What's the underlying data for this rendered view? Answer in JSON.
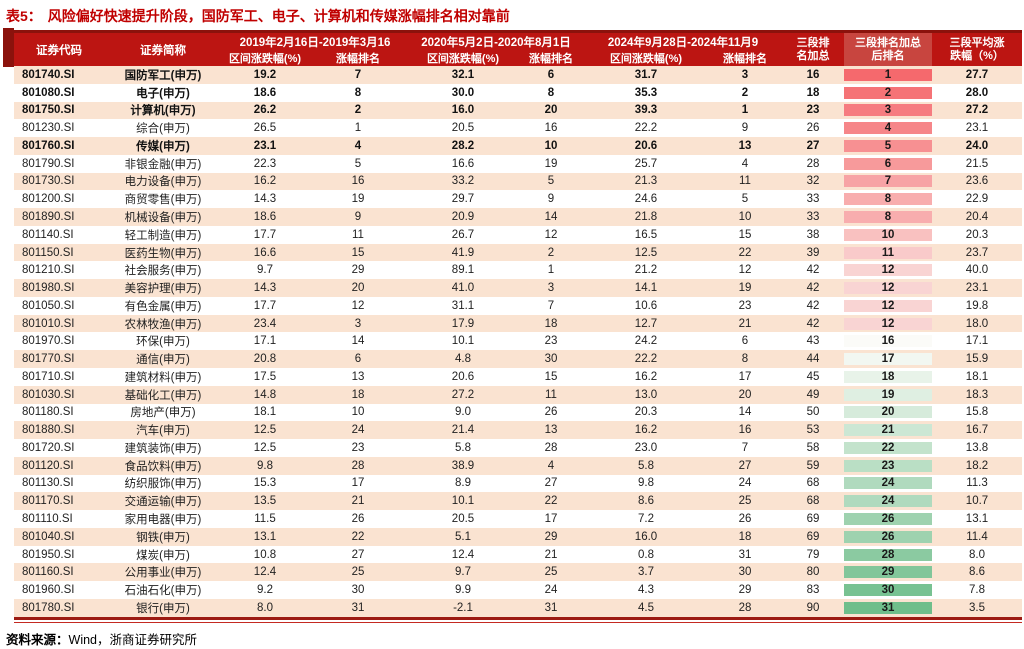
{
  "title": {
    "tag": "表5：",
    "text": "风险偏好快速提升阶段，国防军工、电子、计算机和传媒涨幅排名相对靠前"
  },
  "header": {
    "code": "证券代码",
    "name": "证券简称",
    "periods": [
      {
        "range": "2019年2月16日-2019年3月16",
        "pct": "区间涨跌幅(%)",
        "rank": "涨幅排名"
      },
      {
        "range": "2020年5月2日-2020年8月1日",
        "pct": "区间涨跌幅(%)",
        "rank": "涨幅排名"
      },
      {
        "range": "2024年9月28日-2024年11月9",
        "pct": "区间涨跌幅(%)",
        "rank": "涨幅排名"
      }
    ],
    "sum_line1": "三段排",
    "sum_line2": "名加总",
    "final_line1": "三段排名加总",
    "final_line2": "后排名",
    "avg_line1": "三段平均涨",
    "avg_line2": "跌幅（%）"
  },
  "rows": [
    {
      "code": "801740.SI",
      "name": "国防军工(申万)",
      "p1": "19.2",
      "r1": "7",
      "p2": "32.1",
      "r2": "6",
      "p3": "31.7",
      "r3": "3",
      "sum": "16",
      "rank": "1",
      "avg": "27.7",
      "bold": true
    },
    {
      "code": "801080.SI",
      "name": "电子(申万)",
      "p1": "18.6",
      "r1": "8",
      "p2": "30.0",
      "r2": "8",
      "p3": "35.3",
      "r3": "2",
      "sum": "18",
      "rank": "2",
      "avg": "28.0",
      "bold": true
    },
    {
      "code": "801750.SI",
      "name": "计算机(申万)",
      "p1": "26.2",
      "r1": "2",
      "p2": "16.0",
      "r2": "20",
      "p3": "39.3",
      "r3": "1",
      "sum": "23",
      "rank": "3",
      "avg": "27.2",
      "bold": true
    },
    {
      "code": "801230.SI",
      "name": "综合(申万)",
      "p1": "26.5",
      "r1": "1",
      "p2": "20.5",
      "r2": "16",
      "p3": "22.2",
      "r3": "9",
      "sum": "26",
      "rank": "4",
      "avg": "23.1",
      "bold": false
    },
    {
      "code": "801760.SI",
      "name": "传媒(申万)",
      "p1": "23.1",
      "r1": "4",
      "p2": "28.2",
      "r2": "10",
      "p3": "20.6",
      "r3": "13",
      "sum": "27",
      "rank": "5",
      "avg": "24.0",
      "bold": true
    },
    {
      "code": "801790.SI",
      "name": "非银金融(申万)",
      "p1": "22.3",
      "r1": "5",
      "p2": "16.6",
      "r2": "19",
      "p3": "25.7",
      "r3": "4",
      "sum": "28",
      "rank": "6",
      "avg": "21.5",
      "bold": false
    },
    {
      "code": "801730.SI",
      "name": "电力设备(申万)",
      "p1": "16.2",
      "r1": "16",
      "p2": "33.2",
      "r2": "5",
      "p3": "21.3",
      "r3": "11",
      "sum": "32",
      "rank": "7",
      "avg": "23.6",
      "bold": false
    },
    {
      "code": "801200.SI",
      "name": "商贸零售(申万)",
      "p1": "14.3",
      "r1": "19",
      "p2": "29.7",
      "r2": "9",
      "p3": "24.6",
      "r3": "5",
      "sum": "33",
      "rank": "8",
      "avg": "22.9",
      "bold": false
    },
    {
      "code": "801890.SI",
      "name": "机械设备(申万)",
      "p1": "18.6",
      "r1": "9",
      "p2": "20.9",
      "r2": "14",
      "p3": "21.8",
      "r3": "10",
      "sum": "33",
      "rank": "8",
      "avg": "20.4",
      "bold": false
    },
    {
      "code": "801140.SI",
      "name": "轻工制造(申万)",
      "p1": "17.7",
      "r1": "11",
      "p2": "26.7",
      "r2": "12",
      "p3": "16.5",
      "r3": "15",
      "sum": "38",
      "rank": "10",
      "avg": "20.3",
      "bold": false
    },
    {
      "code": "801150.SI",
      "name": "医药生物(申万)",
      "p1": "16.6",
      "r1": "15",
      "p2": "41.9",
      "r2": "2",
      "p3": "12.5",
      "r3": "22",
      "sum": "39",
      "rank": "11",
      "avg": "23.7",
      "bold": false
    },
    {
      "code": "801210.SI",
      "name": "社会服务(申万)",
      "p1": "9.7",
      "r1": "29",
      "p2": "89.1",
      "r2": "1",
      "p3": "21.2",
      "r3": "12",
      "sum": "42",
      "rank": "12",
      "avg": "40.0",
      "bold": false
    },
    {
      "code": "801980.SI",
      "name": "美容护理(申万)",
      "p1": "14.3",
      "r1": "20",
      "p2": "41.0",
      "r2": "3",
      "p3": "14.1",
      "r3": "19",
      "sum": "42",
      "rank": "12",
      "avg": "23.1",
      "bold": false
    },
    {
      "code": "801050.SI",
      "name": "有色金属(申万)",
      "p1": "17.7",
      "r1": "12",
      "p2": "31.1",
      "r2": "7",
      "p3": "10.6",
      "r3": "23",
      "sum": "42",
      "rank": "12",
      "avg": "19.8",
      "bold": false
    },
    {
      "code": "801010.SI",
      "name": "农林牧渔(申万)",
      "p1": "23.4",
      "r1": "3",
      "p2": "17.9",
      "r2": "18",
      "p3": "12.7",
      "r3": "21",
      "sum": "42",
      "rank": "12",
      "avg": "18.0",
      "bold": false
    },
    {
      "code": "801970.SI",
      "name": "环保(申万)",
      "p1": "17.1",
      "r1": "14",
      "p2": "10.1",
      "r2": "23",
      "p3": "24.2",
      "r3": "6",
      "sum": "43",
      "rank": "16",
      "avg": "17.1",
      "bold": false
    },
    {
      "code": "801770.SI",
      "name": "通信(申万)",
      "p1": "20.8",
      "r1": "6",
      "p2": "4.8",
      "r2": "30",
      "p3": "22.2",
      "r3": "8",
      "sum": "44",
      "rank": "17",
      "avg": "15.9",
      "bold": false
    },
    {
      "code": "801710.SI",
      "name": "建筑材料(申万)",
      "p1": "17.5",
      "r1": "13",
      "p2": "20.6",
      "r2": "15",
      "p3": "16.2",
      "r3": "17",
      "sum": "45",
      "rank": "18",
      "avg": "18.1",
      "bold": false
    },
    {
      "code": "801030.SI",
      "name": "基础化工(申万)",
      "p1": "14.8",
      "r1": "18",
      "p2": "27.2",
      "r2": "11",
      "p3": "13.0",
      "r3": "20",
      "sum": "49",
      "rank": "19",
      "avg": "18.3",
      "bold": false
    },
    {
      "code": "801180.SI",
      "name": "房地产(申万)",
      "p1": "18.1",
      "r1": "10",
      "p2": "9.0",
      "r2": "26",
      "p3": "20.3",
      "r3": "14",
      "sum": "50",
      "rank": "20",
      "avg": "15.8",
      "bold": false
    },
    {
      "code": "801880.SI",
      "name": "汽车(申万)",
      "p1": "12.5",
      "r1": "24",
      "p2": "21.4",
      "r2": "13",
      "p3": "16.2",
      "r3": "16",
      "sum": "53",
      "rank": "21",
      "avg": "16.7",
      "bold": false
    },
    {
      "code": "801720.SI",
      "name": "建筑装饰(申万)",
      "p1": "12.5",
      "r1": "23",
      "p2": "5.8",
      "r2": "28",
      "p3": "23.0",
      "r3": "7",
      "sum": "58",
      "rank": "22",
      "avg": "13.8",
      "bold": false
    },
    {
      "code": "801120.SI",
      "name": "食品饮料(申万)",
      "p1": "9.8",
      "r1": "28",
      "p2": "38.9",
      "r2": "4",
      "p3": "5.8",
      "r3": "27",
      "sum": "59",
      "rank": "23",
      "avg": "18.2",
      "bold": false
    },
    {
      "code": "801130.SI",
      "name": "纺织服饰(申万)",
      "p1": "15.3",
      "r1": "17",
      "p2": "8.9",
      "r2": "27",
      "p3": "9.8",
      "r3": "24",
      "sum": "68",
      "rank": "24",
      "avg": "11.3",
      "bold": false
    },
    {
      "code": "801170.SI",
      "name": "交通运输(申万)",
      "p1": "13.5",
      "r1": "21",
      "p2": "10.1",
      "r2": "22",
      "p3": "8.6",
      "r3": "25",
      "sum": "68",
      "rank": "24",
      "avg": "10.7",
      "bold": false
    },
    {
      "code": "801110.SI",
      "name": "家用电器(申万)",
      "p1": "11.5",
      "r1": "26",
      "p2": "20.5",
      "r2": "17",
      "p3": "7.2",
      "r3": "26",
      "sum": "69",
      "rank": "26",
      "avg": "13.1",
      "bold": false
    },
    {
      "code": "801040.SI",
      "name": "钢铁(申万)",
      "p1": "13.1",
      "r1": "22",
      "p2": "5.1",
      "r2": "29",
      "p3": "16.0",
      "r3": "18",
      "sum": "69",
      "rank": "26",
      "avg": "11.4",
      "bold": false
    },
    {
      "code": "801950.SI",
      "name": "煤炭(申万)",
      "p1": "10.8",
      "r1": "27",
      "p2": "12.4",
      "r2": "21",
      "p3": "0.8",
      "r3": "31",
      "sum": "79",
      "rank": "28",
      "avg": "8.0",
      "bold": false
    },
    {
      "code": "801160.SI",
      "name": "公用事业(申万)",
      "p1": "12.4",
      "r1": "25",
      "p2": "9.7",
      "r2": "25",
      "p3": "3.7",
      "r3": "30",
      "sum": "80",
      "rank": "29",
      "avg": "8.6",
      "bold": false
    },
    {
      "code": "801960.SI",
      "name": "石油石化(申万)",
      "p1": "9.2",
      "r1": "30",
      "p2": "9.9",
      "r2": "24",
      "p3": "4.3",
      "r3": "29",
      "sum": "83",
      "rank": "30",
      "avg": "7.8",
      "bold": false
    },
    {
      "code": "801780.SI",
      "name": "银行(申万)",
      "p1": "8.0",
      "r1": "31",
      "p2": "-2.1",
      "r2": "31",
      "p3": "4.5",
      "r3": "28",
      "sum": "90",
      "rank": "31",
      "avg": "3.5",
      "bold": false
    }
  ],
  "footer": {
    "label": "资料来源：",
    "text": "Wind，浙商证券研究所"
  },
  "colors": {
    "header_bg": "#BC1512",
    "header_accent": "#C8453F",
    "dark_edge": "#8B120C",
    "title": "#C00000",
    "stripe": "#FAE3D1",
    "text": "#1F1F1F",
    "scale_red": "#F5696D",
    "scale_mid": "#FBFBF8",
    "scale_green": "#6FBE8B",
    "scale_mid_rank": 16,
    "scale_max_rank": 31,
    "rule_dark": "#9C1A12",
    "rule_red": "#C42A22"
  }
}
